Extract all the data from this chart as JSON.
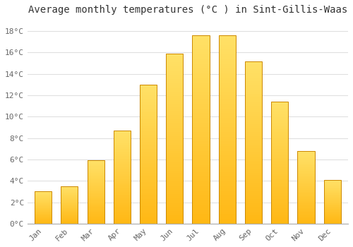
{
  "title": "Average monthly temperatures (°C ) in Sint-Gillis-Waas",
  "months": [
    "Jan",
    "Feb",
    "Mar",
    "Apr",
    "May",
    "Jun",
    "Jul",
    "Aug",
    "Sep",
    "Oct",
    "Nov",
    "Dec"
  ],
  "temperatures": [
    3.0,
    3.5,
    5.9,
    8.7,
    13.0,
    15.9,
    17.6,
    17.6,
    15.2,
    11.4,
    6.8,
    4.1
  ],
  "bar_color_bottom": "#FFB800",
  "bar_color_top": "#FFD966",
  "bar_edge_color": "#CC8800",
  "ylim": [
    0,
    19
  ],
  "yticks": [
    0,
    2,
    4,
    6,
    8,
    10,
    12,
    14,
    16,
    18
  ],
  "ytick_labels": [
    "0°C",
    "2°C",
    "4°C",
    "6°C",
    "8°C",
    "10°C",
    "12°C",
    "14°C",
    "16°C",
    "18°C"
  ],
  "background_color": "#ffffff",
  "plot_bg_color": "#ffffff",
  "grid_color": "#e0e0e0",
  "title_fontsize": 10,
  "tick_fontsize": 8,
  "bar_width": 0.65,
  "tick_color": "#666666"
}
